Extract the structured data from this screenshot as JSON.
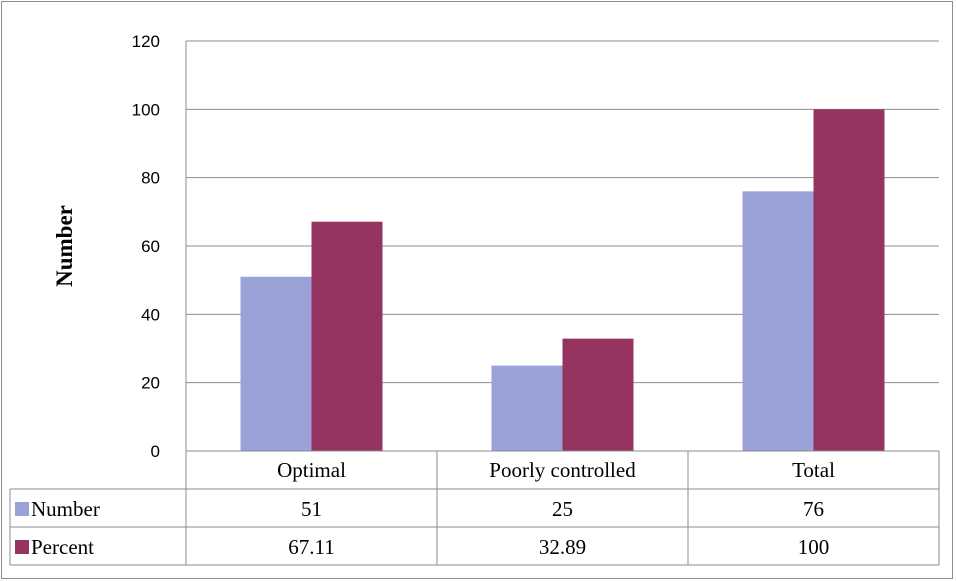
{
  "chart_data": {
    "type": "bar",
    "title": "",
    "xlabel": "",
    "ylabel": "Number",
    "ylim": [
      0,
      120
    ],
    "yticks": [
      "0",
      "20",
      "40",
      "60",
      "80",
      "100",
      "120"
    ],
    "grid": true,
    "legend_position": "data table below plot",
    "categories": [
      "Optimal",
      "Poorly controlled",
      "Total"
    ],
    "series": [
      {
        "name": "Number",
        "values": [
          51,
          25,
          76
        ],
        "labels": [
          "51",
          "25",
          "76"
        ],
        "color": "#9BA2D8"
      },
      {
        "name": "Percent",
        "values": [
          67.11,
          32.89,
          100
        ],
        "labels": [
          "67.11",
          "32.89",
          "100"
        ],
        "color": "#953361"
      }
    ]
  }
}
